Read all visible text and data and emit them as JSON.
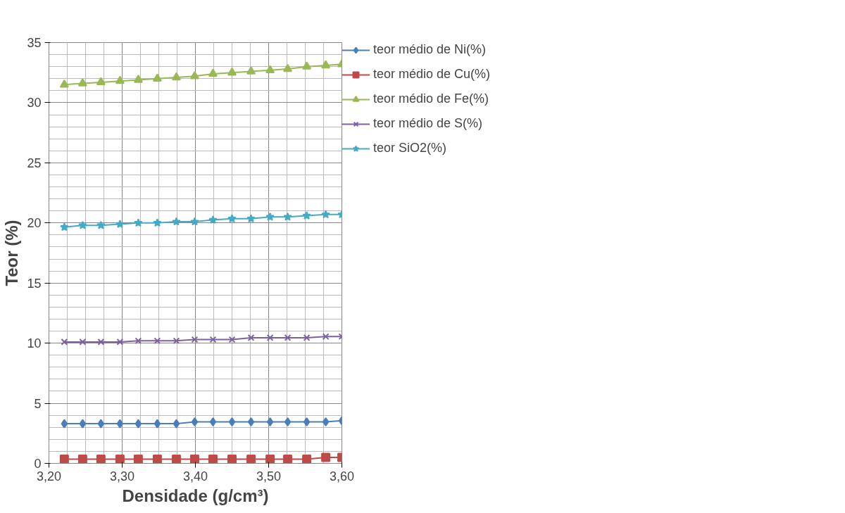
{
  "chart_data": {
    "type": "line",
    "xlabel": "Densidade (g/cm³)",
    "ylabel": "Teor (%)",
    "x": [
      3.221,
      3.246,
      3.271,
      3.297,
      3.322,
      3.348,
      3.374,
      3.399,
      3.424,
      3.45,
      3.476,
      3.502,
      3.526,
      3.552,
      3.578,
      3.6
    ],
    "xlim": [
      3.2,
      3.6
    ],
    "xticks": [
      {
        "value": 3.2,
        "label": "3,20"
      },
      {
        "value": 3.3,
        "label": "3,30"
      },
      {
        "value": 3.4,
        "label": "3,40"
      },
      {
        "value": 3.5,
        "label": "3,50"
      },
      {
        "value": 3.6,
        "label": "3,60"
      }
    ],
    "ylim": [
      0,
      35
    ],
    "yticks": [
      0,
      5,
      10,
      15,
      20,
      25,
      30,
      35
    ],
    "grid": true,
    "legend": "right",
    "series": [
      {
        "name": "teor médio de Ni(%)",
        "color": "#4a7ebb",
        "marker": "diamond",
        "values": [
          3.3,
          3.3,
          3.3,
          3.3,
          3.3,
          3.3,
          3.3,
          3.45,
          3.45,
          3.45,
          3.45,
          3.45,
          3.45,
          3.45,
          3.45,
          3.55
        ]
      },
      {
        "name": "teor médio de Cu(%)",
        "color": "#be4b48",
        "marker": "square",
        "values": [
          0.35,
          0.35,
          0.35,
          0.35,
          0.35,
          0.35,
          0.35,
          0.35,
          0.35,
          0.35,
          0.35,
          0.35,
          0.35,
          0.35,
          0.5,
          0.5
        ]
      },
      {
        "name": "teor médio de Fe(%)",
        "color": "#98b954",
        "marker": "triangle",
        "values": [
          31.5,
          31.6,
          31.7,
          31.8,
          31.9,
          32.0,
          32.1,
          32.2,
          32.4,
          32.5,
          32.6,
          32.7,
          32.8,
          33.0,
          33.1,
          33.2
        ]
      },
      {
        "name": "teor médio de S(%)",
        "color": "#7d60a0",
        "marker": "cross",
        "values": [
          10.1,
          10.1,
          10.1,
          10.1,
          10.2,
          10.2,
          10.2,
          10.3,
          10.3,
          10.3,
          10.45,
          10.45,
          10.45,
          10.45,
          10.55,
          10.55
        ]
      },
      {
        "name": "teor SiO2(%)",
        "color": "#46aac5",
        "marker": "star",
        "values": [
          19.65,
          19.8,
          19.8,
          19.9,
          20.0,
          20.0,
          20.1,
          20.1,
          20.25,
          20.35,
          20.35,
          20.5,
          20.5,
          20.6,
          20.7,
          20.7
        ]
      }
    ]
  }
}
